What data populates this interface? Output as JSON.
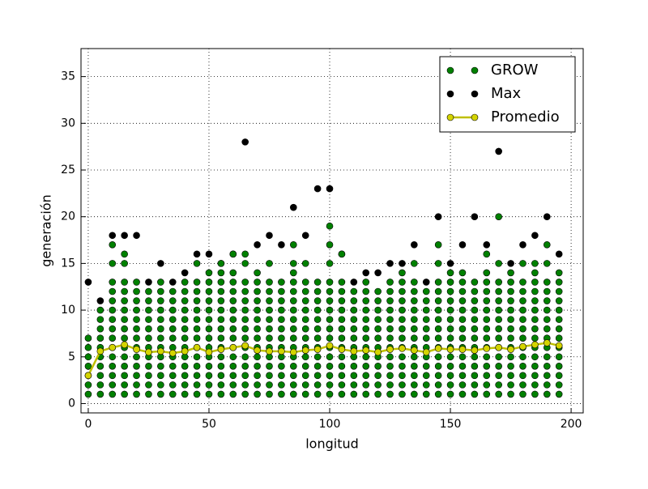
{
  "chart_data": {
    "type": "scatter",
    "x_label": "longitud",
    "y_label": "generación",
    "xlim": [
      -3,
      205
    ],
    "ylim": [
      -1,
      38
    ],
    "xticks": [
      0,
      50,
      100,
      150,
      200
    ],
    "yticks": [
      0,
      5,
      10,
      15,
      20,
      25,
      30,
      35
    ],
    "grid": true,
    "legend": "upper right",
    "x": [
      0,
      5,
      10,
      15,
      20,
      25,
      30,
      35,
      40,
      45,
      50,
      55,
      60,
      65,
      70,
      75,
      80,
      85,
      90,
      95,
      100,
      105,
      110,
      115,
      120,
      125,
      130,
      135,
      140,
      145,
      150,
      155,
      160,
      165,
      170,
      175,
      180,
      185,
      190,
      195
    ],
    "series": [
      {
        "name": "GROW",
        "color": "#008000",
        "style": "points",
        "values": [
          [
            1,
            2,
            3,
            4,
            5,
            6,
            7
          ],
          [
            1,
            2,
            3,
            4,
            5,
            6,
            7,
            8,
            9,
            10
          ],
          [
            1,
            2,
            3,
            4,
            5,
            6,
            7,
            8,
            9,
            10,
            11,
            12,
            13,
            15,
            17
          ],
          [
            1,
            2,
            3,
            4,
            5,
            6,
            7,
            8,
            9,
            10,
            11,
            12,
            13,
            15,
            16
          ],
          [
            1,
            2,
            3,
            4,
            5,
            6,
            7,
            8,
            9,
            10,
            11,
            12,
            13
          ],
          [
            1,
            2,
            3,
            4,
            5,
            6,
            7,
            8,
            9,
            10,
            11,
            12
          ],
          [
            1,
            2,
            3,
            4,
            5,
            6,
            7,
            8,
            9,
            10,
            11,
            12,
            13
          ],
          [
            1,
            2,
            3,
            4,
            5,
            6,
            7,
            8,
            9,
            10,
            11,
            12
          ],
          [
            1,
            2,
            3,
            4,
            5,
            6,
            7,
            8,
            9,
            10,
            11,
            12,
            13
          ],
          [
            1,
            2,
            3,
            4,
            5,
            6,
            7,
            8,
            9,
            10,
            11,
            12,
            13,
            15
          ],
          [
            1,
            2,
            3,
            4,
            5,
            6,
            7,
            8,
            9,
            10,
            11,
            12,
            13,
            14
          ],
          [
            1,
            2,
            3,
            4,
            5,
            6,
            7,
            8,
            9,
            10,
            11,
            12,
            13,
            14,
            15
          ],
          [
            1,
            2,
            3,
            4,
            5,
            6,
            7,
            8,
            9,
            10,
            11,
            12,
            13,
            14,
            16
          ],
          [
            1,
            2,
            3,
            4,
            5,
            6,
            7,
            8,
            9,
            10,
            11,
            12,
            13,
            15,
            16
          ],
          [
            1,
            2,
            3,
            4,
            5,
            6,
            7,
            8,
            9,
            10,
            11,
            12,
            13,
            14
          ],
          [
            1,
            2,
            3,
            4,
            5,
            6,
            7,
            8,
            9,
            10,
            11,
            12,
            13,
            15
          ],
          [
            1,
            2,
            3,
            4,
            5,
            6,
            7,
            8,
            9,
            10,
            11,
            12,
            13
          ],
          [
            1,
            2,
            3,
            4,
            5,
            6,
            7,
            8,
            9,
            10,
            11,
            12,
            13,
            14,
            15,
            17
          ],
          [
            1,
            2,
            3,
            4,
            5,
            6,
            7,
            8,
            9,
            10,
            11,
            12,
            13,
            15
          ],
          [
            1,
            2,
            3,
            4,
            5,
            6,
            7,
            8,
            9,
            10,
            11,
            12,
            13
          ],
          [
            1,
            2,
            3,
            4,
            5,
            6,
            7,
            8,
            9,
            10,
            11,
            12,
            13,
            15,
            17,
            19
          ],
          [
            1,
            2,
            3,
            4,
            5,
            6,
            7,
            8,
            9,
            10,
            11,
            12,
            13,
            16
          ],
          [
            1,
            2,
            3,
            4,
            5,
            6,
            7,
            8,
            9,
            10,
            11,
            12
          ],
          [
            1,
            2,
            3,
            4,
            5,
            6,
            7,
            8,
            9,
            10,
            11,
            12,
            13
          ],
          [
            1,
            2,
            3,
            4,
            5,
            6,
            7,
            8,
            9,
            10,
            11,
            12
          ],
          [
            1,
            2,
            3,
            4,
            5,
            6,
            7,
            8,
            9,
            10,
            11,
            12,
            13
          ],
          [
            1,
            2,
            3,
            4,
            5,
            6,
            7,
            8,
            9,
            10,
            11,
            12,
            13,
            14
          ],
          [
            1,
            2,
            3,
            4,
            5,
            6,
            7,
            8,
            9,
            10,
            11,
            12,
            13,
            15
          ],
          [
            1,
            2,
            3,
            4,
            5,
            6,
            7,
            8,
            9,
            10,
            11,
            12
          ],
          [
            1,
            2,
            3,
            4,
            5,
            6,
            7,
            8,
            9,
            10,
            11,
            12,
            13,
            15,
            17
          ],
          [
            1,
            2,
            3,
            4,
            5,
            6,
            7,
            8,
            9,
            10,
            11,
            12,
            13,
            14
          ],
          [
            1,
            2,
            3,
            4,
            5,
            6,
            7,
            8,
            9,
            10,
            11,
            12,
            13,
            14
          ],
          [
            1,
            2,
            3,
            4,
            5,
            6,
            7,
            8,
            9,
            10,
            11,
            12,
            13
          ],
          [
            1,
            2,
            3,
            4,
            5,
            6,
            7,
            8,
            9,
            10,
            11,
            12,
            13,
            14,
            16
          ],
          [
            1,
            2,
            3,
            4,
            5,
            6,
            7,
            8,
            9,
            10,
            11,
            12,
            13,
            15,
            20
          ],
          [
            1,
            2,
            3,
            4,
            5,
            6,
            7,
            8,
            9,
            10,
            11,
            12,
            13,
            14
          ],
          [
            1,
            2,
            3,
            4,
            5,
            6,
            7,
            8,
            9,
            10,
            11,
            12,
            13,
            15
          ],
          [
            1,
            2,
            3,
            4,
            5,
            6,
            7,
            8,
            9,
            10,
            11,
            12,
            13,
            14,
            15
          ],
          [
            1,
            2,
            3,
            4,
            5,
            6,
            7,
            8,
            9,
            10,
            11,
            12,
            13,
            15,
            17
          ],
          [
            1,
            2,
            3,
            4,
            5,
            6,
            7,
            8,
            9,
            10,
            11,
            12,
            13,
            14
          ]
        ]
      },
      {
        "name": "Max",
        "color": "#000000",
        "style": "points",
        "values": [
          13,
          11,
          18,
          18,
          18,
          13,
          15,
          13,
          14,
          16,
          16,
          15,
          16,
          28,
          17,
          18,
          17,
          21,
          18,
          23,
          23,
          16,
          13,
          14,
          14,
          15,
          15,
          17,
          13,
          20,
          15,
          17,
          20,
          17,
          27,
          15,
          17,
          18,
          20,
          16
        ]
      },
      {
        "name": "Promedio",
        "color": "#bfbf00",
        "marker_color": "#d4d400",
        "style": "line",
        "values": [
          3,
          5.6,
          6,
          6.3,
          5.8,
          5.5,
          5.6,
          5.4,
          5.6,
          6,
          5.5,
          5.8,
          6,
          6.2,
          5.7,
          5.6,
          5.6,
          5.5,
          5.7,
          5.8,
          6.2,
          5.8,
          5.6,
          5.7,
          5.5,
          5.8,
          5.9,
          5.7,
          5.5,
          5.9,
          5.8,
          5.8,
          5.7,
          5.9,
          6,
          5.8,
          6.1,
          6.3,
          6.5,
          6.2
        ]
      }
    ]
  }
}
